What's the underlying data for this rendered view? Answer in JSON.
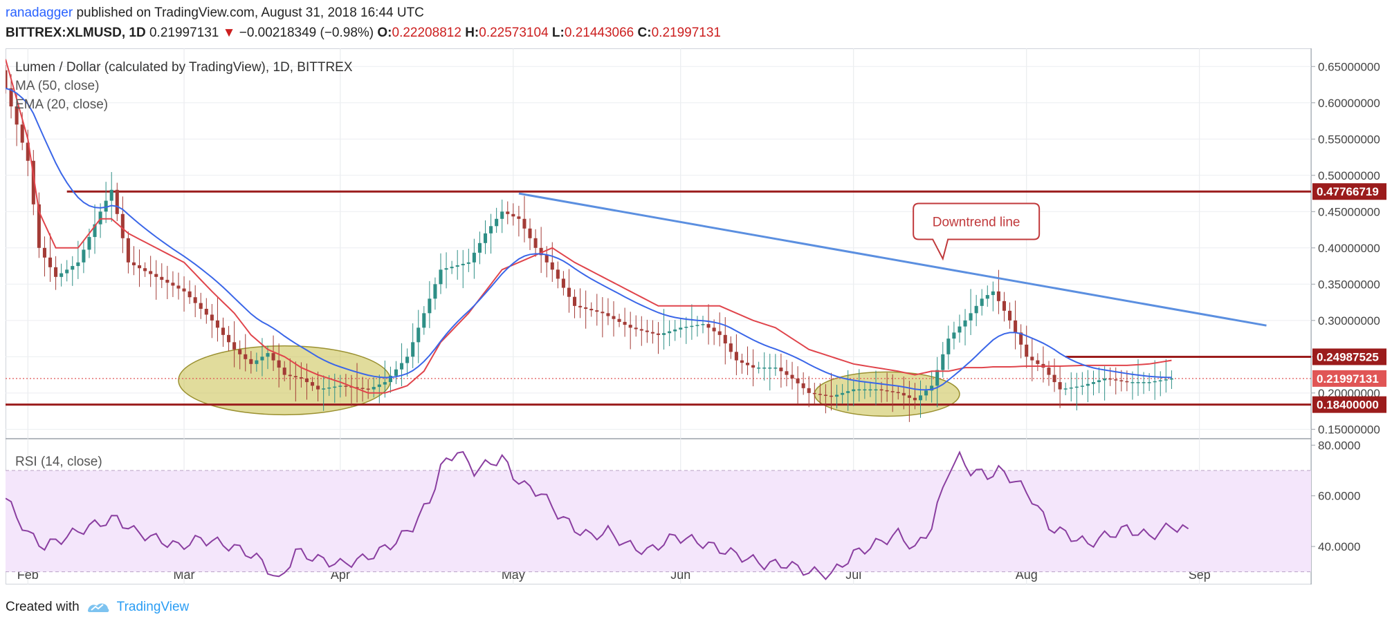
{
  "header": {
    "publisher": "ranadagger",
    "published_text": "published on TradingView.com, August 31, 2018 16:44 UTC",
    "symbol": "BITTREX:XLMUSD, 1D",
    "last": "0.21997131",
    "change": "−0.00218349 (−0.98%)",
    "o_label": "O:",
    "o_val": "0.22208812",
    "h_label": "H:",
    "h_val": "0.22573104",
    "l_label": "L:",
    "l_val": "0.21443066",
    "c_label": "C:",
    "c_val": "0.21997131"
  },
  "footer": {
    "created_with": "Created with",
    "brand": "TradingView"
  },
  "colors": {
    "up": "#2e8f86",
    "down": "#a33b36",
    "ma50": "#e0444b",
    "ema20": "#3a66e8",
    "trend": "#5b8fe0",
    "level": "#9b1c1c",
    "rsi": "#8a3ea0",
    "ellipse": "#c9bf4a"
  },
  "chart_data": [
    {
      "type": "candlestick",
      "title": "Lumen / Dollar (calculated by TradingView), 1D, BITTREX",
      "indicators": [
        "MA (50, close)",
        "EMA (20, close)"
      ],
      "x_labels": [
        "Feb",
        "Mar",
        "Apr",
        "May",
        "Jun",
        "Jul",
        "Aug",
        "Sep"
      ],
      "x_label_days": [
        4,
        32,
        60,
        91,
        121,
        152,
        183,
        214
      ],
      "xlim": [
        0,
        234
      ],
      "ylim": [
        0.137,
        0.675
      ],
      "y_ticks": [
        0.15,
        0.2,
        0.25,
        0.3,
        0.35,
        0.4,
        0.45,
        0.5,
        0.55,
        0.6,
        0.65
      ],
      "y_tick_labels": [
        "0.15000000",
        "0.20000000",
        "0.25000000",
        "0.30000000",
        "0.35000000",
        "0.40000000",
        "0.45000000",
        "0.50000000",
        "0.55000000",
        "0.60000000",
        "0.65000000"
      ],
      "price_levels": [
        {
          "value": 0.47766719,
          "label": "0.47766719",
          "style": "solid"
        },
        {
          "value": 0.24987525,
          "label": "0.24987525",
          "style": "solid"
        },
        {
          "value": 0.184,
          "label": "0.18400000",
          "style": "solid"
        },
        {
          "value": 0.21997131,
          "label": "0.21997131",
          "style": "dotted"
        }
      ],
      "trendline": {
        "label": "Downtrend line",
        "start": {
          "day": 92,
          "price": 0.475
        },
        "end": {
          "day": 226,
          "price": 0.293
        }
      },
      "callout": {
        "text": "Downtrend line",
        "day": 174,
        "price": 0.4365,
        "points_to": {
          "day": 168,
          "price": 0.385
        }
      },
      "highlights": [
        {
          "label": "accumulation-zone-1",
          "day_center": 50,
          "day_half_width": 19,
          "price_center": 0.2175,
          "price_half_height": 0.0475
        },
        {
          "label": "accumulation-zone-2",
          "day_center": 158,
          "day_half_width": 13,
          "price_center": 0.1985,
          "price_half_height": 0.0305
        }
      ],
      "keypoints": [
        [
          0,
          0.62,
          0.66
        ],
        [
          4,
          0.52,
          0.55
        ],
        [
          6,
          0.4,
          0.45
        ],
        [
          9,
          0.36,
          0.4
        ],
        [
          13,
          0.38,
          0.4
        ],
        [
          17,
          0.45,
          0.44
        ],
        [
          19,
          0.48,
          0.44
        ],
        [
          22,
          0.38,
          0.42
        ],
        [
          27,
          0.36,
          0.4
        ],
        [
          32,
          0.34,
          0.38
        ],
        [
          37,
          0.3,
          0.34
        ],
        [
          41,
          0.26,
          0.31
        ],
        [
          44,
          0.24,
          0.28
        ],
        [
          47,
          0.255,
          0.26
        ],
        [
          50,
          0.225,
          0.25
        ],
        [
          53,
          0.22,
          0.235
        ],
        [
          56,
          0.205,
          0.225
        ],
        [
          60,
          0.21,
          0.215
        ],
        [
          65,
          0.205,
          0.2
        ],
        [
          68,
          0.215,
          0.2
        ],
        [
          72,
          0.25,
          0.21
        ],
        [
          75,
          0.31,
          0.23
        ],
        [
          78,
          0.37,
          0.27
        ],
        [
          83,
          0.38,
          0.31
        ],
        [
          86,
          0.42,
          0.34
        ],
        [
          89,
          0.45,
          0.37
        ],
        [
          92,
          0.44,
          0.38
        ],
        [
          95,
          0.4,
          0.39
        ],
        [
          98,
          0.37,
          0.4
        ],
        [
          102,
          0.32,
          0.38
        ],
        [
          107,
          0.31,
          0.36
        ],
        [
          112,
          0.29,
          0.34
        ],
        [
          117,
          0.28,
          0.32
        ],
        [
          121,
          0.29,
          0.32
        ],
        [
          125,
          0.295,
          0.32
        ],
        [
          128,
          0.28,
          0.32
        ],
        [
          131,
          0.245,
          0.31
        ],
        [
          134,
          0.235,
          0.3
        ],
        [
          138,
          0.235,
          0.29
        ],
        [
          141,
          0.22,
          0.275
        ],
        [
          144,
          0.2,
          0.26
        ],
        [
          148,
          0.195,
          0.25
        ],
        [
          152,
          0.205,
          0.24
        ],
        [
          156,
          0.205,
          0.235
        ],
        [
          160,
          0.2,
          0.23
        ],
        [
          163,
          0.19,
          0.225
        ],
        [
          166,
          0.21,
          0.23
        ],
        [
          169,
          0.275,
          0.23
        ],
        [
          172,
          0.3,
          0.235
        ],
        [
          175,
          0.33,
          0.235
        ],
        [
          177,
          0.34,
          0.236
        ],
        [
          180,
          0.3,
          0.236
        ],
        [
          183,
          0.25,
          0.237
        ],
        [
          186,
          0.235,
          0.237
        ],
        [
          189,
          0.205,
          0.237
        ],
        [
          193,
          0.21,
          0.238
        ],
        [
          197,
          0.22,
          0.238
        ],
        [
          201,
          0.215,
          0.238
        ],
        [
          205,
          0.215,
          0.24
        ],
        [
          209,
          0.22,
          0.245
        ]
      ]
    },
    {
      "type": "line",
      "title": "RSI (14, close)",
      "ylim": [
        25,
        82
      ],
      "y_ticks": [
        40,
        60,
        80
      ],
      "y_tick_labels": [
        "40.0000",
        "60.0000",
        "80.0000"
      ],
      "band": [
        30,
        70
      ],
      "keypoints": [
        [
          0,
          59
        ],
        [
          4,
          45
        ],
        [
          7,
          40
        ],
        [
          11,
          44
        ],
        [
          14,
          47
        ],
        [
          18,
          50
        ],
        [
          20,
          51
        ],
        [
          23,
          46
        ],
        [
          27,
          43
        ],
        [
          31,
          40
        ],
        [
          35,
          43
        ],
        [
          39,
          41
        ],
        [
          43,
          38
        ],
        [
          46,
          34
        ],
        [
          49,
          26
        ],
        [
          52,
          38
        ],
        [
          56,
          35
        ],
        [
          60,
          33
        ],
        [
          64,
          35
        ],
        [
          67,
          38
        ],
        [
          70,
          42
        ],
        [
          73,
          48
        ],
        [
          76,
          58
        ],
        [
          78,
          71
        ],
        [
          81,
          78
        ],
        [
          84,
          70
        ],
        [
          87,
          73
        ],
        [
          89,
          75
        ],
        [
          91,
          68
        ],
        [
          93,
          64
        ],
        [
          96,
          61
        ],
        [
          99,
          53
        ],
        [
          102,
          47
        ],
        [
          105,
          44
        ],
        [
          108,
          46
        ],
        [
          111,
          41
        ],
        [
          115,
          38
        ],
        [
          120,
          44
        ],
        [
          124,
          42
        ],
        [
          128,
          39
        ],
        [
          132,
          36
        ],
        [
          136,
          33
        ],
        [
          140,
          33
        ],
        [
          144,
          30
        ],
        [
          148,
          29
        ],
        [
          152,
          37
        ],
        [
          156,
          41
        ],
        [
          160,
          45
        ],
        [
          163,
          39
        ],
        [
          166,
          48
        ],
        [
          169,
          70
        ],
        [
          171,
          75
        ],
        [
          173,
          70
        ],
        [
          176,
          68
        ],
        [
          178,
          70
        ],
        [
          181,
          66
        ],
        [
          184,
          59
        ],
        [
          187,
          48
        ],
        [
          191,
          44
        ],
        [
          194,
          41
        ],
        [
          197,
          44
        ],
        [
          201,
          47
        ],
        [
          205,
          44
        ],
        [
          209,
          48
        ],
        [
          212,
          47
        ]
      ]
    }
  ]
}
